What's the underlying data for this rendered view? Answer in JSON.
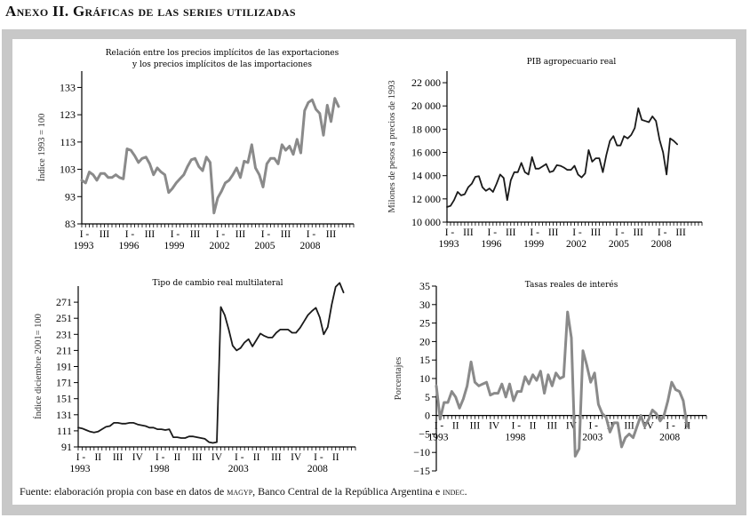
{
  "heading": {
    "prefix": "Anexo II. ",
    "title": "Gráficas de las series utilizadas"
  },
  "source_note": {
    "text1": "Fuente: elaboración propia con base en datos de ",
    "sc1": "magyp",
    "text2": ", Banco Central de la República Argentina e ",
    "sc2": "indec",
    "text3": "."
  },
  "chart_data": [
    {
      "type": "line",
      "title_lines": [
        "Relación entre los precios implícitos de las exportaciones",
        "y los precios implícitos de las importaciones"
      ],
      "ylabel": "Índice 1993 = 100",
      "ylim": [
        83,
        139
      ],
      "yticks": [
        "133",
        "123",
        "113",
        "103",
        "93",
        "83"
      ],
      "ytick_values": [
        133,
        123,
        113,
        103,
        93,
        83
      ],
      "xlabels": [
        [
          "I -",
          "1993"
        ],
        [
          "III",
          ""
        ],
        [
          "I -",
          "1996"
        ],
        [
          "III",
          ""
        ],
        [
          "I -",
          "1999"
        ],
        [
          "III",
          ""
        ],
        [
          "I -",
          "2002"
        ],
        [
          "III",
          ""
        ],
        [
          "I -",
          "2005"
        ],
        [
          "III",
          ""
        ],
        [
          "I -",
          "2008"
        ],
        [
          "III",
          ""
        ]
      ],
      "xlabel_quarters": [
        0,
        6,
        12,
        18,
        24,
        30,
        36,
        42,
        48,
        54,
        60,
        66
      ],
      "n_quarters": 72,
      "color": "#8a8a8a",
      "values": [
        99,
        98,
        102,
        101,
        99,
        101.5,
        101.5,
        100,
        100,
        101,
        100,
        99.5,
        110.5,
        110,
        108,
        105.5,
        107,
        107.5,
        105,
        101,
        103.5,
        102,
        101,
        94.5,
        96,
        98,
        99.5,
        101,
        104,
        106.5,
        107,
        104,
        102.5,
        107.5,
        105.5,
        87,
        92.5,
        95,
        98,
        99,
        101,
        103.5,
        100,
        106,
        105.5,
        112,
        103.5,
        101,
        96.5,
        105,
        107,
        107,
        105,
        112,
        110,
        111.5,
        108.5,
        114,
        109,
        124.5,
        127.5,
        128.5,
        125,
        123.5,
        115.5,
        126.5,
        120.5,
        129,
        126
      ]
    },
    {
      "type": "line",
      "title_lines": [
        "PIB agropecuario real"
      ],
      "ylabel": "Milones de pesos a precios de 1993",
      "ylim": [
        10000,
        23000
      ],
      "yticks": [
        "22 000",
        "20 000",
        "18 000",
        "16 000",
        "14 000",
        "12 000",
        "10 000"
      ],
      "ytick_values": [
        22000,
        20000,
        18000,
        16000,
        14000,
        12000,
        10000
      ],
      "xlabels": [
        [
          "I -",
          "1993"
        ],
        [
          "III",
          ""
        ],
        [
          "I -",
          "1996"
        ],
        [
          "III",
          ""
        ],
        [
          "I -",
          "1999"
        ],
        [
          "III",
          ""
        ],
        [
          "I -",
          "2002"
        ],
        [
          "III",
          ""
        ],
        [
          "I -",
          "2005"
        ],
        [
          "III",
          ""
        ],
        [
          "I -",
          "2008"
        ],
        [
          "III",
          ""
        ]
      ],
      "xlabel_quarters": [
        0,
        6,
        12,
        18,
        24,
        30,
        36,
        42,
        48,
        54,
        60,
        66
      ],
      "n_quarters": 72,
      "color": "#1a1a1a",
      "values": [
        11300,
        11400,
        11900,
        12600,
        12300,
        12400,
        13000,
        13300,
        13900,
        13950,
        13000,
        12700,
        12900,
        12600,
        13300,
        14100,
        13800,
        11900,
        13600,
        14300,
        14300,
        15100,
        14300,
        14100,
        15600,
        14600,
        14600,
        14800,
        15000,
        14300,
        14400,
        14900,
        14850,
        14700,
        14500,
        14500,
        14850,
        14100,
        13850,
        14200,
        16200,
        15200,
        15500,
        15500,
        14300,
        15800,
        17000,
        17400,
        16600,
        16600,
        17400,
        17200,
        17500,
        18100,
        19800,
        18800,
        18700,
        18600,
        19100,
        18700,
        17100,
        16000,
        14100,
        17200,
        17000,
        16700
      ]
    },
    {
      "type": "line",
      "title_lines": [
        "Tipo de cambio real multilateral"
      ],
      "ylabel": "Índice diciembre 2001= 100",
      "ylim": [
        91,
        291
      ],
      "yticks": [
        "271",
        "251",
        "231",
        "211",
        "191",
        "171",
        "151",
        "131",
        "111",
        "91"
      ],
      "ytick_values": [
        271,
        251,
        231,
        211,
        191,
        171,
        151,
        131,
        111,
        91
      ],
      "xlabels": [
        [
          "I -",
          "1993"
        ],
        [
          "II",
          ""
        ],
        [
          "III",
          ""
        ],
        [
          "IV",
          ""
        ],
        [
          "I -",
          "1998"
        ],
        [
          "II",
          ""
        ],
        [
          "III",
          ""
        ],
        [
          "IV",
          ""
        ],
        [
          "I -",
          "2003"
        ],
        [
          "II",
          ""
        ],
        [
          "III",
          ""
        ],
        [
          "IV",
          ""
        ],
        [
          "I -",
          "2008"
        ],
        [
          "II",
          ""
        ]
      ],
      "xlabel_quarters": [
        0,
        5,
        10,
        15,
        20,
        25,
        30,
        35,
        40,
        45,
        50,
        55,
        60,
        65
      ],
      "n_quarters": 70,
      "color": "#1a1a1a",
      "values": [
        115,
        114,
        112,
        110,
        109,
        110,
        113,
        116,
        117,
        121,
        121,
        120,
        120,
        121,
        121,
        119,
        118,
        117,
        115,
        115,
        113,
        113,
        112,
        113,
        103,
        103,
        102,
        102,
        104,
        104,
        103,
        102,
        101,
        97,
        96,
        97,
        265,
        255,
        237,
        217,
        211,
        214,
        221,
        225,
        216,
        224,
        232,
        229,
        227,
        227,
        233,
        237,
        237,
        237,
        233,
        233,
        239,
        247,
        255,
        260,
        264,
        252,
        231,
        240,
        268,
        290,
        295,
        283
      ]
    },
    {
      "type": "line",
      "title_lines": [
        "Tasas reales de interés"
      ],
      "ylabel": "Porcentajes",
      "ylim": [
        -15,
        35
      ],
      "yticks": [
        "35",
        "30",
        "25",
        "20",
        "15",
        "10",
        "5",
        "0",
        "−5",
        "−10",
        "−15"
      ],
      "ytick_values": [
        35,
        30,
        25,
        20,
        15,
        10,
        5,
        0,
        -5,
        -10,
        -15
      ],
      "xlabels": [
        [
          "I -",
          "1993"
        ],
        [
          "II",
          ""
        ],
        [
          "III",
          ""
        ],
        [
          "IV",
          ""
        ],
        [
          "I -",
          "1998"
        ],
        [
          "II",
          ""
        ],
        [
          "III",
          ""
        ],
        [
          "IV",
          ""
        ],
        [
          "I -",
          "2003"
        ],
        [
          "II",
          ""
        ],
        [
          "III",
          ""
        ],
        [
          "IV",
          ""
        ],
        [
          "I -",
          "2008"
        ],
        [
          "II",
          ""
        ]
      ],
      "xlabel_quarters": [
        0,
        5,
        10,
        15,
        20,
        25,
        30,
        35,
        40,
        45,
        50,
        55,
        60,
        65
      ],
      "n_quarters": 70,
      "color": "#8a8a8a",
      "values": [
        8,
        -1,
        3.5,
        3.5,
        6.5,
        5,
        2,
        4.5,
        8,
        14.5,
        9,
        8,
        8.5,
        9,
        5.5,
        6,
        6,
        8.5,
        5,
        8.5,
        4,
        6.5,
        6.5,
        10.5,
        8.5,
        11,
        9.5,
        12,
        6,
        11,
        8,
        11.5,
        10,
        10.5,
        28,
        21,
        -11,
        -9,
        17.5,
        13.5,
        9,
        11.5,
        3,
        0.5,
        -0.5,
        -4.5,
        -2,
        -2,
        -8.5,
        -6,
        -5,
        -6,
        -3,
        0,
        -3,
        -1,
        1.5,
        0.5,
        -1.5,
        0,
        4,
        9,
        7,
        6.5,
        4,
        -3
      ]
    }
  ]
}
